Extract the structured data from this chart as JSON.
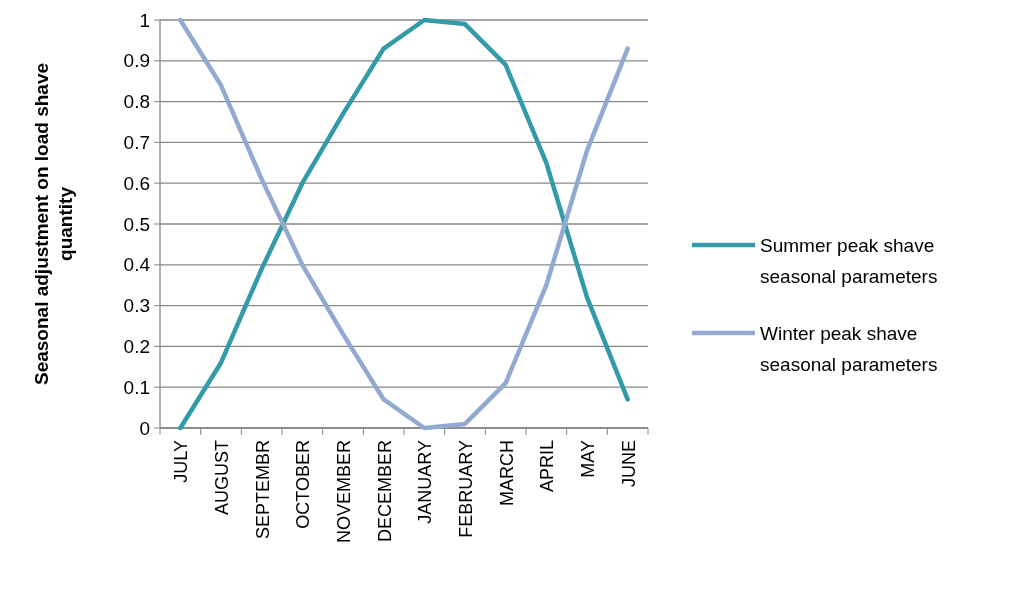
{
  "chart_data": {
    "type": "line",
    "ylabel": "Seasonal adjustment on load shave quantity",
    "categories": [
      "JULY",
      "AUGUST",
      "SEPTEMBR",
      "OCTOBER",
      "NOVEMBER",
      "DECEMBER",
      "JANUARY",
      "FEBRUARY",
      "MARCH",
      "APRIL",
      "MAY",
      "JUNE"
    ],
    "series": [
      {
        "name": "Summer peak shave seasonal parameters",
        "color": "#339aa8",
        "values": [
          0,
          0.16,
          0.39,
          0.6,
          0.77,
          0.93,
          1.0,
          0.99,
          0.89,
          0.65,
          0.32,
          0.07
        ]
      },
      {
        "name": "Winter peak shave seasonal parameters",
        "color": "#93a9d0",
        "values": [
          1,
          0.84,
          0.61,
          0.4,
          0.23,
          0.07,
          0,
          0.01,
          0.11,
          0.35,
          0.68,
          0.93
        ]
      }
    ],
    "ylim": [
      0,
      1
    ],
    "yticks": [
      0,
      0.1,
      0.2,
      0.3,
      0.4,
      0.5,
      0.6,
      0.7,
      0.8,
      0.9,
      1
    ],
    "grid": "y",
    "legend": "right",
    "line_style": "solid",
    "marker": "none"
  }
}
